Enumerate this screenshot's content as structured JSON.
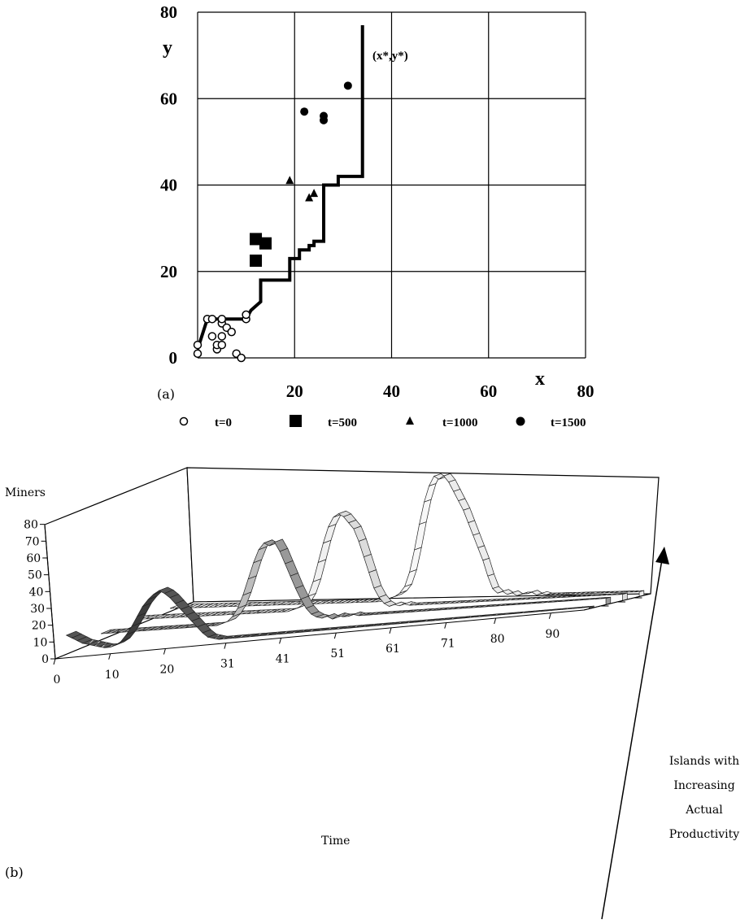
{
  "chart_data": [
    {
      "type": "scatter",
      "panel_label": "(a)",
      "xlabel": "x",
      "ylabel": "y",
      "xlim": [
        0,
        80
      ],
      "ylim": [
        0,
        80
      ],
      "x_ticks": [
        "20",
        "40",
        "60",
        "80"
      ],
      "y_ticks": [
        "0",
        "20",
        "40",
        "60",
        "80"
      ],
      "annotation": "(x*,y*)",
      "grid": true,
      "legend_position": "bottom",
      "step_line": [
        [
          0,
          2
        ],
        [
          2,
          9
        ],
        [
          5,
          9
        ],
        [
          10,
          9
        ],
        [
          11,
          11
        ],
        [
          12,
          12
        ],
        [
          13,
          13
        ],
        [
          13,
          18
        ],
        [
          19,
          18
        ],
        [
          19,
          23
        ],
        [
          21,
          23
        ],
        [
          21,
          25
        ],
        [
          23,
          25
        ],
        [
          23,
          26
        ],
        [
          24,
          26
        ],
        [
          24,
          27
        ],
        [
          26,
          27
        ],
        [
          26,
          28
        ],
        [
          26,
          40
        ],
        [
          29,
          40
        ],
        [
          29,
          42
        ],
        [
          34,
          42
        ],
        [
          34,
          77
        ]
      ],
      "series": [
        {
          "name": "t=0",
          "marker": "circle-open",
          "points": [
            [
              0,
              1
            ],
            [
              0,
              3
            ],
            [
              2,
              9
            ],
            [
              3,
              9
            ],
            [
              3,
              5
            ],
            [
              4,
              2
            ],
            [
              4,
              3
            ],
            [
              5,
              3
            ],
            [
              5,
              5
            ],
            [
              5,
              8
            ],
            [
              5,
              9
            ],
            [
              6,
              7
            ],
            [
              7,
              6
            ],
            [
              8,
              1
            ],
            [
              9,
              0
            ],
            [
              10,
              9
            ],
            [
              10,
              10
            ]
          ]
        },
        {
          "name": "t=500",
          "marker": "square",
          "points": [
            [
              12,
              22.5
            ],
            [
              12,
              27.5
            ],
            [
              14,
              26.5
            ]
          ]
        },
        {
          "name": "t=1000",
          "marker": "triangle",
          "points": [
            [
              19,
              41
            ],
            [
              23,
              37
            ],
            [
              24,
              38
            ]
          ]
        },
        {
          "name": "t=1500",
          "marker": "circle",
          "points": [
            [
              22,
              57
            ],
            [
              26,
              55
            ],
            [
              26,
              56
            ],
            [
              31,
              63
            ]
          ]
        }
      ]
    },
    {
      "type": "area",
      "panel_label": "(b)",
      "ylabel": "Miners",
      "xlabel": "Time",
      "depth_label": [
        "Islands with",
        "Increasing",
        "Actual",
        "Productivity"
      ],
      "y_ticks": [
        "0",
        "10",
        "20",
        "30",
        "40",
        "50",
        "60",
        "70",
        "80"
      ],
      "x_ticks": [
        "0",
        "10",
        "20",
        "31",
        "41",
        "51",
        "61",
        "71",
        "80",
        "90"
      ],
      "series": [
        {
          "name": "",
          "color": "#4a4a4a",
          "values": [
            12,
            10,
            8,
            6,
            5,
            4,
            3,
            2,
            2,
            3,
            5,
            9,
            14,
            20,
            26,
            30,
            33,
            35,
            33,
            30,
            26,
            22,
            18,
            14,
            10,
            6,
            3,
            2,
            1,
            1,
            1,
            1,
            1,
            1,
            1,
            1,
            1,
            1,
            1,
            1,
            1,
            1,
            1,
            1,
            1,
            1,
            1,
            1,
            1,
            1,
            1,
            1,
            1,
            1,
            1,
            1,
            1,
            1,
            1,
            1,
            1,
            1,
            1,
            1,
            1,
            1,
            1,
            1,
            1,
            1,
            1,
            1,
            1,
            1,
            1,
            1,
            1,
            1,
            1,
            1,
            1,
            1,
            1,
            1,
            1,
            1,
            1,
            1,
            1,
            1,
            1,
            1,
            1,
            1,
            1,
            1,
            1
          ]
        },
        {
          "name": "",
          "color": "#a8a8a8",
          "values": [
            4,
            4,
            4,
            4,
            4,
            4,
            4,
            4,
            4,
            4,
            4,
            4,
            4,
            4,
            4,
            4,
            4,
            4,
            4,
            4,
            4,
            4,
            4,
            5,
            6,
            9,
            14,
            22,
            32,
            42,
            50,
            54,
            52,
            54,
            48,
            40,
            32,
            24,
            17,
            11,
            7,
            5,
            4,
            5,
            3,
            5,
            4,
            4,
            5,
            4,
            4,
            4,
            4,
            4,
            4,
            4,
            4,
            4,
            4,
            4,
            4,
            4,
            4,
            4,
            4,
            4,
            4,
            4,
            4,
            4,
            4,
            4,
            4,
            4,
            4,
            4,
            4,
            4,
            4,
            4,
            4,
            4,
            4,
            4,
            4,
            4,
            4,
            4,
            4,
            4,
            4,
            4,
            4,
            4,
            4,
            4,
            4
          ]
        },
        {
          "name": "",
          "color": "#e8e8e8",
          "values": [
            4,
            4,
            4,
            4,
            4,
            4,
            4,
            4,
            4,
            4,
            4,
            4,
            4,
            4,
            4,
            4,
            4,
            4,
            4,
            4,
            4,
            4,
            4,
            4,
            4,
            4,
            4,
            4,
            4,
            4,
            4,
            5,
            6,
            8,
            13,
            22,
            34,
            46,
            56,
            62,
            64,
            62,
            58,
            54,
            46,
            36,
            26,
            16,
            10,
            6,
            4,
            5,
            4,
            5,
            4,
            4,
            4,
            4,
            4,
            4,
            4,
            4,
            4,
            4,
            4,
            4,
            4,
            4,
            4,
            4,
            4,
            4,
            4,
            4,
            4,
            4,
            4,
            4,
            4,
            4,
            4,
            4,
            4,
            4,
            4,
            4,
            4,
            4,
            4,
            4,
            4,
            4,
            4,
            4,
            4,
            4,
            4
          ]
        },
        {
          "name": "",
          "color": "#f4f4f4",
          "values": [
            2,
            2,
            2,
            2,
            2,
            2,
            2,
            2,
            2,
            2,
            2,
            2,
            2,
            2,
            2,
            2,
            2,
            2,
            2,
            2,
            2,
            2,
            2,
            2,
            2,
            2,
            2,
            2,
            2,
            2,
            2,
            2,
            2,
            2,
            2,
            2,
            2,
            2,
            2,
            2,
            2,
            2,
            2,
            2,
            3,
            4,
            5,
            7,
            11,
            20,
            34,
            50,
            64,
            74,
            80,
            78,
            80,
            76,
            70,
            64,
            58,
            50,
            42,
            34,
            26,
            16,
            8,
            5,
            6,
            4,
            5,
            3,
            4,
            4,
            5,
            3,
            4,
            3,
            3,
            3,
            3,
            3,
            3,
            3,
            3,
            3,
            3,
            3,
            3,
            3,
            3,
            3,
            3,
            3,
            3,
            3,
            3
          ]
        }
      ]
    }
  ]
}
